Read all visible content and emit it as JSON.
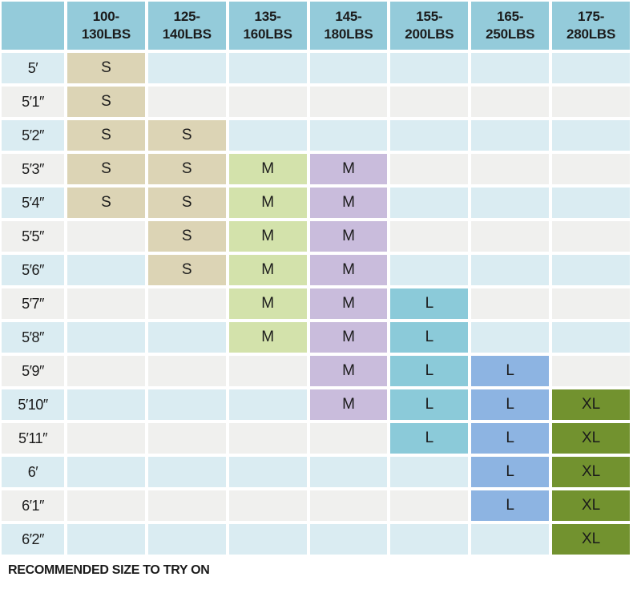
{
  "chart_data": {
    "type": "table",
    "corner_label": "",
    "weight_columns": [
      "100-\n130LBS",
      "125-\n140LBS",
      "135-\n160LBS",
      "145-\n180LBS",
      "155-\n200LBS",
      "165-\n250LBS",
      "175-\n280LBS"
    ],
    "rows": [
      {
        "height": "5′",
        "sizes": [
          "S",
          "",
          "",
          "",
          "",
          "",
          ""
        ]
      },
      {
        "height": "5′1″",
        "sizes": [
          "S",
          "",
          "",
          "",
          "",
          "",
          ""
        ]
      },
      {
        "height": "5′2″",
        "sizes": [
          "S",
          "S",
          "",
          "",
          "",
          "",
          ""
        ]
      },
      {
        "height": "5′3″",
        "sizes": [
          "S",
          "S",
          "M",
          "M",
          "",
          "",
          ""
        ]
      },
      {
        "height": "5′4″",
        "sizes": [
          "S",
          "S",
          "M",
          "M",
          "",
          "",
          ""
        ]
      },
      {
        "height": "5′5″",
        "sizes": [
          "",
          "S",
          "M",
          "M",
          "",
          "",
          ""
        ]
      },
      {
        "height": "5′6″",
        "sizes": [
          "",
          "S",
          "M",
          "M",
          "",
          "",
          ""
        ]
      },
      {
        "height": "5′7″",
        "sizes": [
          "",
          "",
          "M",
          "M",
          "L",
          "",
          ""
        ]
      },
      {
        "height": "5′8″",
        "sizes": [
          "",
          "",
          "M",
          "M",
          "L",
          "",
          ""
        ]
      },
      {
        "height": "5′9″",
        "sizes": [
          "",
          "",
          "",
          "M",
          "L",
          "L",
          ""
        ]
      },
      {
        "height": "5′10″",
        "sizes": [
          "",
          "",
          "",
          "M",
          "L",
          "L",
          "XL"
        ]
      },
      {
        "height": "5′11″",
        "sizes": [
          "",
          "",
          "",
          "",
          "L",
          "L",
          "XL"
        ]
      },
      {
        "height": "6′",
        "sizes": [
          "",
          "",
          "",
          "",
          "",
          "L",
          "XL"
        ]
      },
      {
        "height": "6′1″",
        "sizes": [
          "",
          "",
          "",
          "",
          "",
          "L",
          "XL"
        ]
      },
      {
        "height": "6′2″",
        "sizes": [
          "",
          "",
          "",
          "",
          "",
          "",
          "XL"
        ]
      }
    ]
  },
  "footer": {
    "note": "RECOMMENDED SIZE TO TRY ON"
  },
  "colors": {
    "header_bg": "#94cbda",
    "row_blue": "#daecf2",
    "row_gray": "#f0f0ee",
    "text": "#1b1b1b",
    "column_fills": [
      "#dcd4b5",
      "#dcd4b5",
      "#d3e2ab",
      "#c9bcdc",
      "#8bcad9",
      "#8db4e2",
      "#72922f"
    ]
  }
}
